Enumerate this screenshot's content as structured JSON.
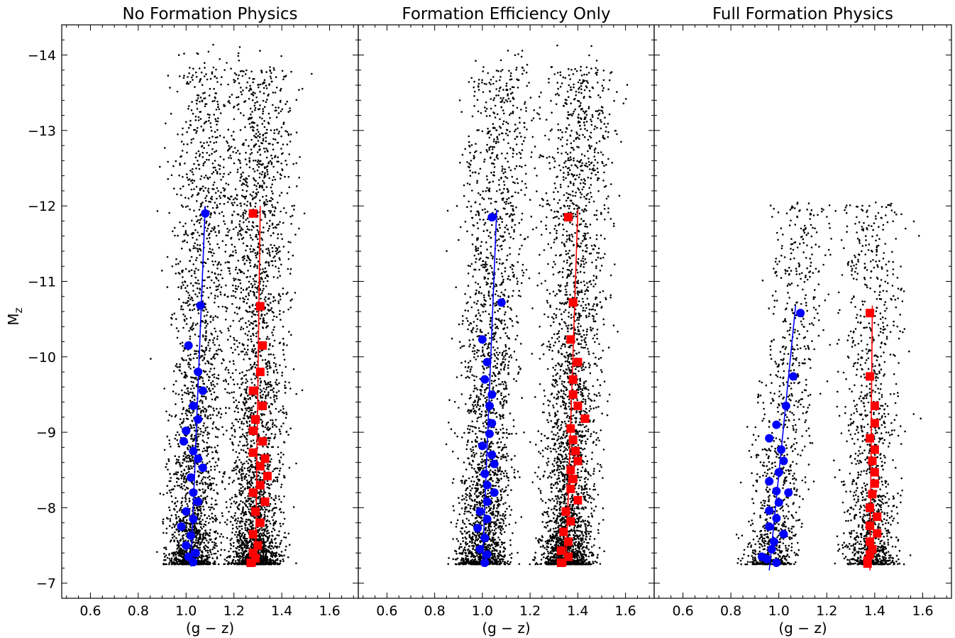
{
  "figure": {
    "ylabel": "M",
    "ylabel_sub": "z"
  },
  "chart_data": [
    {
      "type": "scatter",
      "title": "No Formation Physics",
      "xlabel": "(g − z)",
      "ylabel": "Mz",
      "xlim": [
        0.48,
        1.72
      ],
      "ylim": [
        -6.8,
        -14.4
      ],
      "y_inverted": true,
      "xticks": [
        "0.6",
        "0.8",
        "1.0",
        "1.2",
        "1.4",
        "1.6"
      ],
      "yticks": [
        "−14",
        "−13",
        "−12",
        "−11",
        "−10",
        "−9",
        "−8",
        "−7"
      ],
      "background_points": {
        "color": "#000000",
        "mag_limit": -7.25
      },
      "blue_peak": {
        "color": "#0000ff",
        "marker": "circle",
        "points": [
          [
            1.08,
            -11.9
          ],
          [
            1.06,
            -10.68
          ],
          [
            1.01,
            -10.15
          ],
          [
            1.05,
            -9.8
          ],
          [
            1.07,
            -9.55
          ],
          [
            1.03,
            -9.35
          ],
          [
            1.05,
            -9.17
          ],
          [
            1.0,
            -9.02
          ],
          [
            0.99,
            -8.88
          ],
          [
            1.03,
            -8.75
          ],
          [
            1.05,
            -8.65
          ],
          [
            1.07,
            -8.53
          ],
          [
            1.02,
            -8.4
          ],
          [
            1.03,
            -8.2
          ],
          [
            1.05,
            -8.08
          ],
          [
            1.0,
            -7.95
          ],
          [
            1.03,
            -7.85
          ],
          [
            0.98,
            -7.75
          ],
          [
            1.02,
            -7.63
          ],
          [
            1.0,
            -7.5
          ],
          [
            1.04,
            -7.4
          ],
          [
            1.01,
            -7.35
          ],
          [
            1.03,
            -7.28
          ]
        ],
        "fit": [
          [
            1.02,
            -7.22
          ],
          [
            1.08,
            -12.0
          ]
        ]
      },
      "red_peak": {
        "color": "#ff0000",
        "marker": "square",
        "points": [
          [
            1.28,
            -11.9
          ],
          [
            1.31,
            -10.67
          ],
          [
            1.32,
            -10.15
          ],
          [
            1.31,
            -9.8
          ],
          [
            1.28,
            -9.55
          ],
          [
            1.32,
            -9.35
          ],
          [
            1.29,
            -9.17
          ],
          [
            1.28,
            -9.02
          ],
          [
            1.32,
            -8.88
          ],
          [
            1.28,
            -8.73
          ],
          [
            1.33,
            -8.65
          ],
          [
            1.31,
            -8.55
          ],
          [
            1.34,
            -8.42
          ],
          [
            1.31,
            -8.3
          ],
          [
            1.28,
            -8.2
          ],
          [
            1.33,
            -8.08
          ],
          [
            1.29,
            -7.95
          ],
          [
            1.31,
            -7.8
          ],
          [
            1.28,
            -7.65
          ],
          [
            1.3,
            -7.5
          ],
          [
            1.28,
            -7.4
          ],
          [
            1.29,
            -7.33
          ],
          [
            1.27,
            -7.27
          ]
        ],
        "fit": [
          [
            1.29,
            -7.22
          ],
          [
            1.31,
            -12.0
          ]
        ]
      }
    },
    {
      "type": "scatter",
      "title": "Formation Efficiency Only",
      "xlabel": "(g − z)",
      "xlim": [
        0.48,
        1.72
      ],
      "ylim": [
        -6.8,
        -14.4
      ],
      "y_inverted": true,
      "xticks": [
        "0.6",
        "0.8",
        "1.0",
        "1.2",
        "1.4",
        "1.6"
      ],
      "background_points": {
        "color": "#000000",
        "mag_limit": -7.25
      },
      "blue_peak": {
        "color": "#0000ff",
        "marker": "circle",
        "points": [
          [
            1.04,
            -11.85
          ],
          [
            1.08,
            -10.72
          ],
          [
            1.0,
            -10.23
          ],
          [
            1.02,
            -9.93
          ],
          [
            1.01,
            -9.7
          ],
          [
            1.04,
            -9.5
          ],
          [
            1.03,
            -9.35
          ],
          [
            1.04,
            -9.12
          ],
          [
            1.03,
            -8.98
          ],
          [
            1.0,
            -8.82
          ],
          [
            1.04,
            -8.7
          ],
          [
            1.05,
            -8.58
          ],
          [
            1.01,
            -8.45
          ],
          [
            1.02,
            -8.3
          ],
          [
            1.05,
            -8.2
          ],
          [
            1.02,
            -8.08
          ],
          [
            0.99,
            -7.95
          ],
          [
            1.02,
            -7.85
          ],
          [
            0.98,
            -7.73
          ],
          [
            1.01,
            -7.6
          ],
          [
            0.99,
            -7.45
          ],
          [
            1.02,
            -7.38
          ],
          [
            1.01,
            -7.27
          ]
        ],
        "fit": [
          [
            1.0,
            -7.22
          ],
          [
            1.06,
            -11.95
          ]
        ]
      },
      "red_peak": {
        "color": "#ff0000",
        "marker": "square",
        "points": [
          [
            1.36,
            -11.85
          ],
          [
            1.38,
            -10.72
          ],
          [
            1.37,
            -10.23
          ],
          [
            1.4,
            -9.93
          ],
          [
            1.38,
            -9.7
          ],
          [
            1.38,
            -9.5
          ],
          [
            1.4,
            -9.35
          ],
          [
            1.43,
            -9.18
          ],
          [
            1.37,
            -9.05
          ],
          [
            1.38,
            -8.9
          ],
          [
            1.39,
            -8.75
          ],
          [
            1.4,
            -8.62
          ],
          [
            1.37,
            -8.5
          ],
          [
            1.38,
            -8.38
          ],
          [
            1.37,
            -8.25
          ],
          [
            1.4,
            -8.1
          ],
          [
            1.35,
            -7.95
          ],
          [
            1.37,
            -7.82
          ],
          [
            1.34,
            -7.68
          ],
          [
            1.36,
            -7.55
          ],
          [
            1.33,
            -7.43
          ],
          [
            1.36,
            -7.35
          ],
          [
            1.33,
            -7.27
          ]
        ],
        "fit": [
          [
            1.35,
            -7.22
          ],
          [
            1.4,
            -11.95
          ]
        ]
      }
    },
    {
      "type": "scatter",
      "title": "Full Formation Physics",
      "xlabel": "(g − z)",
      "xlim": [
        0.48,
        1.72
      ],
      "ylim": [
        -6.8,
        -14.4
      ],
      "y_inverted": true,
      "xticks": [
        "0.6",
        "0.8",
        "1.0",
        "1.2",
        "1.4",
        "1.6"
      ],
      "background_points": {
        "color": "#000000",
        "mag_limit": -7.25
      },
      "blue_peak": {
        "color": "#0000ff",
        "marker": "circle",
        "points": [
          [
            1.09,
            -10.58
          ],
          [
            1.06,
            -9.74
          ],
          [
            1.03,
            -9.35
          ],
          [
            0.99,
            -9.1
          ],
          [
            0.96,
            -8.92
          ],
          [
            1.01,
            -8.77
          ],
          [
            1.02,
            -8.62
          ],
          [
            1.0,
            -8.47
          ],
          [
            0.96,
            -8.35
          ],
          [
            0.99,
            -8.22
          ],
          [
            1.04,
            -8.2
          ],
          [
            1.0,
            -8.07
          ],
          [
            0.96,
            -7.96
          ],
          [
            0.99,
            -7.86
          ],
          [
            0.96,
            -7.75
          ],
          [
            1.02,
            -7.65
          ],
          [
            0.98,
            -7.55
          ],
          [
            0.97,
            -7.45
          ],
          [
            0.93,
            -7.35
          ],
          [
            0.95,
            -7.32
          ],
          [
            0.99,
            -7.27
          ]
        ],
        "fit": [
          [
            0.96,
            -7.17
          ],
          [
            1.07,
            -10.68
          ]
        ]
      },
      "red_peak": {
        "color": "#ff0000",
        "marker": "square",
        "points": [
          [
            1.38,
            -10.58
          ],
          [
            1.38,
            -9.74
          ],
          [
            1.4,
            -9.35
          ],
          [
            1.4,
            -9.12
          ],
          [
            1.38,
            -8.92
          ],
          [
            1.4,
            -8.77
          ],
          [
            1.39,
            -8.62
          ],
          [
            1.4,
            -8.47
          ],
          [
            1.4,
            -8.32
          ],
          [
            1.39,
            -8.18
          ],
          [
            1.38,
            -8.0
          ],
          [
            1.41,
            -7.88
          ],
          [
            1.38,
            -7.76
          ],
          [
            1.41,
            -7.66
          ],
          [
            1.38,
            -7.55
          ],
          [
            1.39,
            -7.45
          ],
          [
            1.38,
            -7.38
          ],
          [
            1.37,
            -7.3
          ],
          [
            1.37,
            -7.26
          ]
        ],
        "fit": [
          [
            1.38,
            -7.17
          ],
          [
            1.39,
            -10.68
          ]
        ]
      }
    }
  ]
}
